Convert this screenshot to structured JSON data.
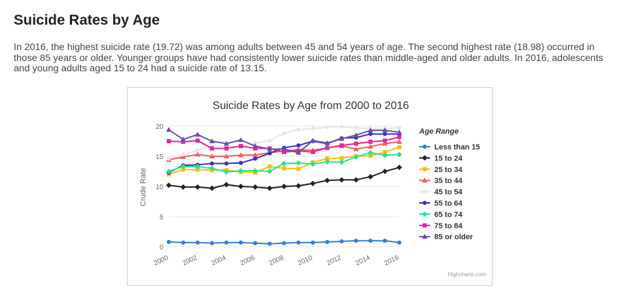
{
  "page": {
    "title": "Suicide Rates by Age",
    "paragraph": "In 2016, the highest suicide rate (19.72) was among adults between 45 and 54 years of age. The second highest rate (18.98) occurred in those 85 years or older. Younger groups have had consistently lower suicide rates than middle-aged and older adults. In 2016, adolescents and young adults aged 15 to 24 had a suicide rate of 13.15."
  },
  "chart_data": {
    "type": "line",
    "title": "Suicide Rates by Age from 2000 to 2016",
    "xlabel": "",
    "ylabel": "Crude Rate",
    "legend_title": "Age Range",
    "legend_position": "right",
    "credits": "Highcharts.com",
    "grid": true,
    "ylim": [
      0,
      20
    ],
    "yticks": [
      0,
      5,
      10,
      15,
      20
    ],
    "xticks": [
      2000,
      2002,
      2004,
      2006,
      2008,
      2010,
      2012,
      2014,
      2016
    ],
    "x": [
      2000,
      2001,
      2002,
      2003,
      2004,
      2005,
      2006,
      2007,
      2008,
      2009,
      2010,
      2011,
      2012,
      2013,
      2014,
      2015,
      2016
    ],
    "series": [
      {
        "name": "Less than 15",
        "color": "#2f7ed8",
        "marker": "circle",
        "values": [
          0.8,
          0.7,
          0.7,
          0.6,
          0.7,
          0.7,
          0.6,
          0.5,
          0.6,
          0.7,
          0.7,
          0.8,
          0.9,
          1.0,
          1.0,
          1.0,
          0.7
        ]
      },
      {
        "name": "15 to 24",
        "color": "#222222",
        "marker": "diamond",
        "values": [
          10.2,
          9.9,
          9.9,
          9.7,
          10.3,
          10.0,
          9.9,
          9.7,
          10.0,
          10.1,
          10.5,
          11.0,
          11.1,
          11.1,
          11.6,
          12.5,
          13.15
        ]
      },
      {
        "name": "25 to 34",
        "color": "#f5c10d",
        "marker": "square",
        "values": [
          12.0,
          12.8,
          12.8,
          12.7,
          12.7,
          12.4,
          12.3,
          13.3,
          13.0,
          12.9,
          14.0,
          14.6,
          14.7,
          15.0,
          15.1,
          15.7,
          16.5
        ]
      },
      {
        "name": "35 to 44",
        "color": "#f45b5b",
        "marker": "triangle",
        "values": [
          14.4,
          14.9,
          15.3,
          15.0,
          15.0,
          15.2,
          15.2,
          15.6,
          15.9,
          16.1,
          16.0,
          16.4,
          16.7,
          16.2,
          16.6,
          17.1,
          17.4
        ]
      },
      {
        "name": "45 to 54",
        "color": "#e6e6e6",
        "marker": "circle",
        "values": [
          14.6,
          15.3,
          16.0,
          16.6,
          16.7,
          16.5,
          17.2,
          17.6,
          18.8,
          19.4,
          19.6,
          19.8,
          19.9,
          19.7,
          19.6,
          19.6,
          19.72
        ]
      },
      {
        "name": "55 to 64",
        "color": "#3b2fc4",
        "marker": "circle",
        "values": [
          12.3,
          13.5,
          13.6,
          13.8,
          13.8,
          13.9,
          14.6,
          15.5,
          16.4,
          16.8,
          17.5,
          17.1,
          18.0,
          18.1,
          18.7,
          18.7,
          18.7
        ]
      },
      {
        "name": "65 to 74",
        "color": "#2ee08a",
        "marker": "diamond",
        "values": [
          12.5,
          13.3,
          13.3,
          13.0,
          12.4,
          12.6,
          12.6,
          12.5,
          13.8,
          13.9,
          13.7,
          14.1,
          14.0,
          14.9,
          15.6,
          15.2,
          15.3
        ]
      },
      {
        "name": "75 to 84",
        "color": "#e0289a",
        "marker": "square",
        "values": [
          17.5,
          17.4,
          17.6,
          16.3,
          16.3,
          16.7,
          16.3,
          16.3,
          15.7,
          15.9,
          15.7,
          16.4,
          16.8,
          17.1,
          17.4,
          17.6,
          18.2
        ]
      },
      {
        "name": "85 or older",
        "color": "#6b4fa8",
        "marker": "triangle",
        "values": [
          19.4,
          17.8,
          18.6,
          17.5,
          17.1,
          17.7,
          16.7,
          16.2,
          16.2,
          15.6,
          17.6,
          17.2,
          17.9,
          18.5,
          19.3,
          19.3,
          18.98
        ]
      }
    ]
  }
}
